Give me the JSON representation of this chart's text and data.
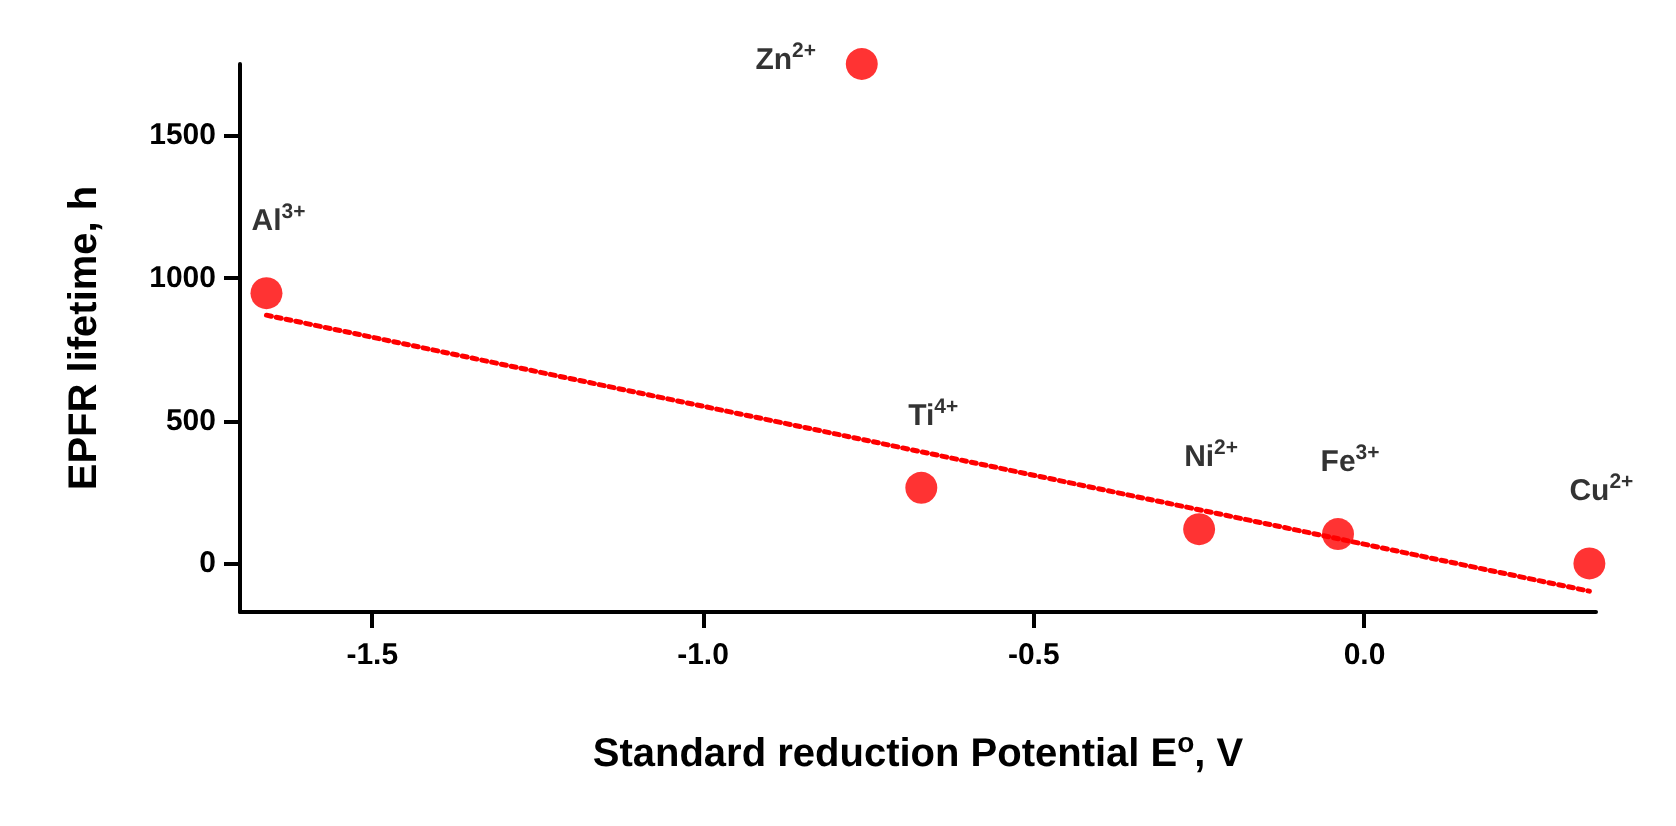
{
  "chart_data": {
    "type": "scatter",
    "xlabel": "Standard reduction Potential E$^{o}$, V",
    "ylabel": "EPFR lifetime, h",
    "x": [
      -1.66,
      -0.76,
      -0.67,
      -0.25,
      -0.04,
      0.34
    ],
    "series": [
      {
        "color": "#ff0000",
        "values": [
          947,
          1750,
          265,
          120,
          103,
          0
        ]
      },
      {
        "type": "line",
        "color": "#ff0000",
        "line_style": "dotted",
        "marker": "none",
        "x": [
          -1.66,
          0.34
        ],
        "values": [
          870,
          -97
        ]
      }
    ],
    "annotations": [
      {
        "text": "Al$^{3+}$",
        "x": -1.66,
        "y": 947
      },
      {
        "text": "Zn$^{2+}$",
        "x": -0.76,
        "y": 1750
      },
      {
        "text": "Ti$^{4+}$",
        "x": -0.67,
        "y": 265
      },
      {
        "text": "Ni$^{2+}$",
        "x": -0.25,
        "y": 120
      },
      {
        "text": "Fe$^{3+}$",
        "x": -0.04,
        "y": 103
      },
      {
        "text": "Cu$^{2+}$",
        "x": 0.34,
        "y": 0
      }
    ],
    "xlim": [
      -1.7,
      0.35
    ],
    "ylim": [
      -170,
      1750
    ],
    "xticks": [
      {
        "value": -1.5,
        "label": "-1.5"
      },
      {
        "value": -1,
        "label": "-1.0"
      },
      {
        "value": -0.5,
        "label": "-0.5"
      },
      {
        "value": 0,
        "label": "0.0"
      }
    ],
    "yticks": [
      0,
      500,
      1000,
      1500
    ],
    "marker": "circle",
    "grid": false
  }
}
